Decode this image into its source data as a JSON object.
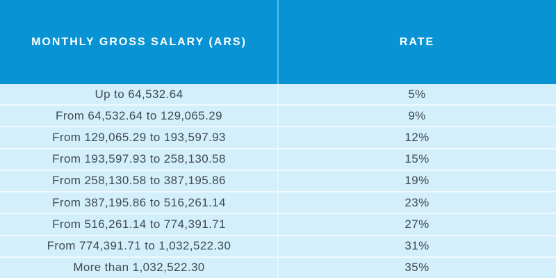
{
  "chart_data": {
    "type": "table",
    "columns": [
      "MONTHLY GROSS SALARY (ARS)",
      "RATE"
    ],
    "rows": [
      [
        "Up to 64,532.64",
        "5%"
      ],
      [
        "From 64,532.64 to 129,065.29",
        "9%"
      ],
      [
        "From 129,065.29 to 193,597.93",
        "12%"
      ],
      [
        "From 193,597.93 to 258,130.58",
        "15%"
      ],
      [
        "From 258,130.58 to 387,195.86",
        "19%"
      ],
      [
        "From 387,195.86 to 516,261.14",
        "23%"
      ],
      [
        "From 516,261.14 to 774,391.71",
        "27%"
      ],
      [
        "From 774,391.71 to 1,032,522.30",
        "31%"
      ],
      [
        "More than 1,032,522.30",
        "35%"
      ]
    ],
    "layout": {
      "header_position": "top",
      "grid": "horizontal-separators-and-center-divider",
      "text_align": "center"
    }
  },
  "colors": {
    "header_bg": "#0894d4",
    "header_text": "#ffffff",
    "row_bg": "#d3effc",
    "separator": "#e8f6fd",
    "body_text": "#3e4a51"
  }
}
